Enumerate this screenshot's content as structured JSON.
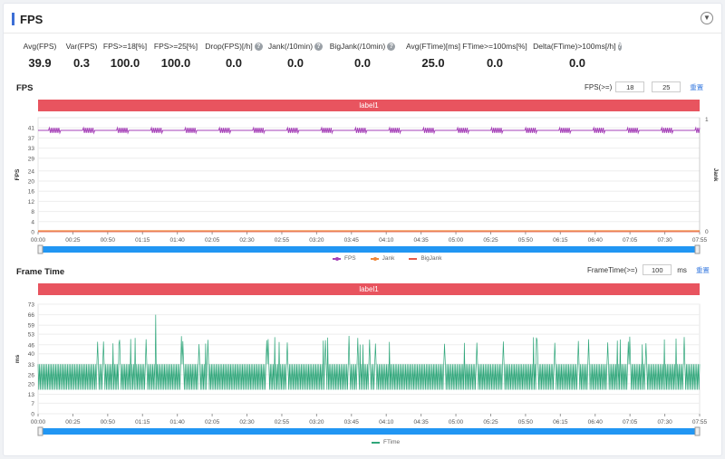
{
  "header": {
    "title": "FPS"
  },
  "stats": [
    {
      "label": "Avg(FPS)",
      "value": "39.9",
      "help": false
    },
    {
      "label": "Var(FPS)",
      "value": "0.3",
      "help": false
    },
    {
      "label": "FPS>=18[%]",
      "value": "100.0",
      "help": false
    },
    {
      "label": "FPS>=25[%]",
      "value": "100.0",
      "help": false
    },
    {
      "label": "Drop(FPS)[/h]",
      "value": "0.0",
      "help": true
    },
    {
      "label": "Jank(/10min)",
      "value": "0.0",
      "help": true
    },
    {
      "label": "BigJank(/10min)",
      "value": "0.0",
      "help": true
    },
    {
      "label": "Avg(FTime)[ms]",
      "value": "25.0",
      "help": false
    },
    {
      "label": "FTime>=100ms[%]",
      "value": "0.0",
      "help": false
    },
    {
      "label": "Delta(FTime)>100ms[/h]",
      "value": "0.0",
      "help": true
    }
  ],
  "fps_section": {
    "title": "FPS",
    "threshold_label": "FPS(>=)",
    "threshold_1": "18",
    "threshold_2": "25",
    "reset_label": "重置",
    "label_bar": "label1"
  },
  "ftime_section": {
    "title": "Frame Time",
    "threshold_label": "FrameTime(>=)",
    "threshold_value": "100",
    "threshold_unit": "ms",
    "reset_label": "重置",
    "label_bar": "label1"
  },
  "colors": {
    "fps": "#a642b8",
    "jank": "#f0883a",
    "bigjank": "#e35a4c",
    "ftime": "#2fa67a",
    "accent": "#3c6fd6",
    "label": "#e8545f",
    "slider": "#2196f3"
  },
  "chart_data": [
    {
      "type": "line",
      "ylabel": "FPS",
      "y2label": "Jank",
      "yticks": [
        0,
        4,
        8,
        12,
        16,
        20,
        24,
        29,
        33,
        37,
        41
      ],
      "ylim": [
        0,
        45
      ],
      "y2ticks": [
        0,
        1
      ],
      "x": [
        "00:00",
        "00:25",
        "00:50",
        "01:15",
        "01:40",
        "02:05",
        "02:30",
        "02:55",
        "03:20",
        "03:45",
        "04:10",
        "04:35",
        "05:00",
        "05:25",
        "05:50",
        "06:15",
        "06:40",
        "07:05",
        "07:30",
        "07:55"
      ],
      "series": [
        {
          "name": "FPS",
          "baseline": 40,
          "jitter_low": 39,
          "jitter_high": 41
        },
        {
          "name": "Jank",
          "value": 0
        },
        {
          "name": "BigJank",
          "value": 0
        }
      ]
    },
    {
      "type": "line",
      "ylabel": "ms",
      "yticks": [
        0,
        7,
        13,
        20,
        26,
        33,
        40,
        46,
        53,
        59,
        66,
        73
      ],
      "ylim": [
        0,
        73
      ],
      "x": [
        "00:00",
        "00:25",
        "00:50",
        "01:15",
        "01:40",
        "02:05",
        "02:30",
        "02:55",
        "03:20",
        "03:45",
        "04:10",
        "04:35",
        "05:00",
        "05:25",
        "05:50",
        "06:15",
        "06:40",
        "07:05",
        "07:30",
        "07:55"
      ],
      "series": [
        {
          "name": "FTime",
          "low": 16,
          "high": 33,
          "spike_max": 66
        }
      ]
    }
  ]
}
